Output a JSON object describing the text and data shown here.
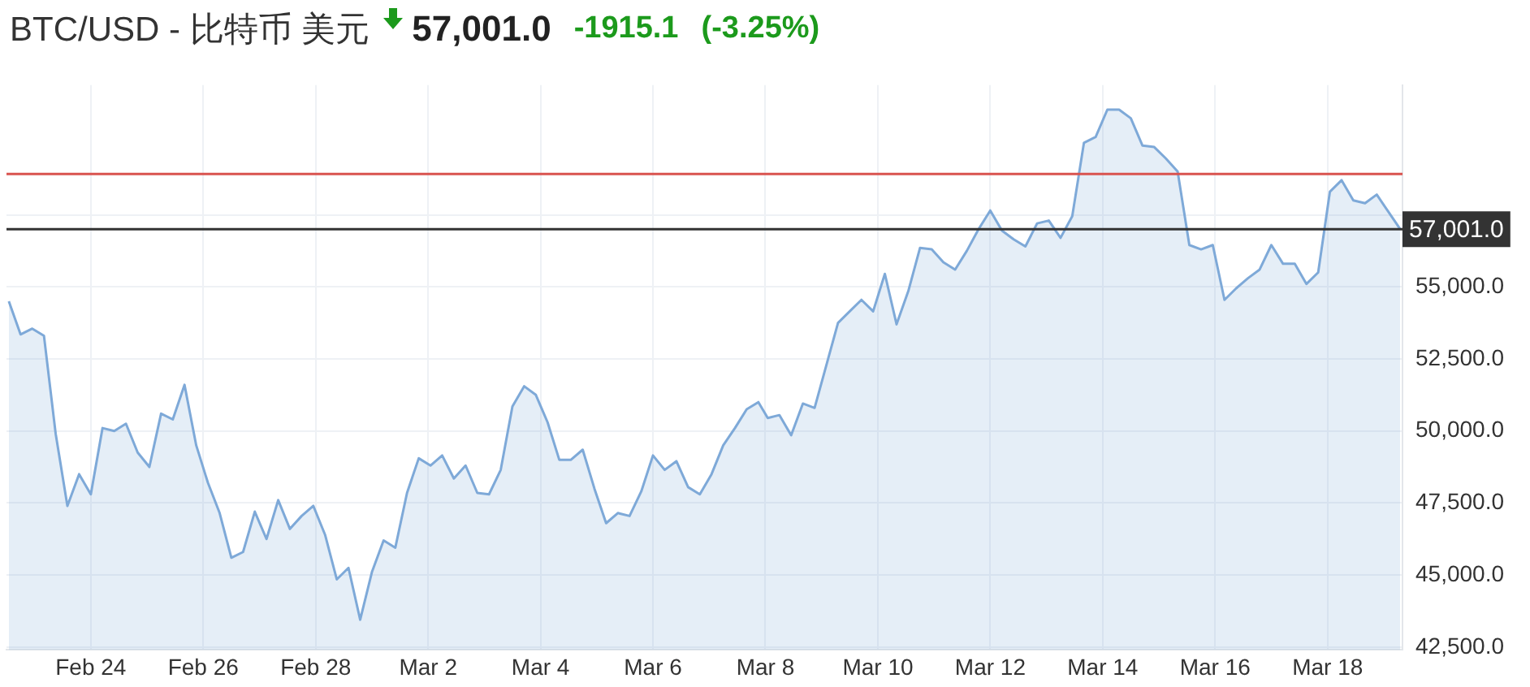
{
  "chart_data": {
    "type": "area",
    "title": "BTC/USD - 比特币 美元",
    "annotations": [
      "57,001.0",
      "-1915.1",
      "(-3.25%)"
    ],
    "x": [
      "--02-22T13:00",
      "--02-22T18:00",
      "--02-22T23:00",
      "--02-23T04:00",
      "--02-23T09:00",
      "--02-23T14:00",
      "--02-23T19:00",
      "--02-24T00:00",
      "--02-24T05:00",
      "--02-24T10:00",
      "--02-24T15:00",
      "--02-24T20:00",
      "--02-25T01:00",
      "--02-25T06:00",
      "--02-25T11:00",
      "--02-25T16:00",
      "--02-25T21:00",
      "--02-26T02:00",
      "--02-26T07:00",
      "--02-26T12:00",
      "--02-26T17:00",
      "--02-26T22:00",
      "--02-27T03:00",
      "--02-27T08:00",
      "--02-27T13:00",
      "--02-27T18:00",
      "--02-27T23:00",
      "--02-28T04:00",
      "--02-28T09:00",
      "--02-28T14:00",
      "--02-28T19:00",
      "--03-01T00:00",
      "--03-01T05:00",
      "--03-01T10:00",
      "--03-01T15:00",
      "--03-01T20:00",
      "--03-02T01:00",
      "--03-02T06:00",
      "--03-02T11:00",
      "--03-02T16:00",
      "--03-02T21:00",
      "--03-03T02:00",
      "--03-03T07:00",
      "--03-03T12:00",
      "--03-03T17:00",
      "--03-03T22:00",
      "--03-04T03:00",
      "--03-04T08:00",
      "--03-04T13:00",
      "--03-04T18:00",
      "--03-04T23:00",
      "--03-05T04:00",
      "--03-05T09:00",
      "--03-05T14:00",
      "--03-05T19:00",
      "--03-06T00:00",
      "--03-06T05:00",
      "--03-06T10:00",
      "--03-06T15:00",
      "--03-06T20:00",
      "--03-07T01:00",
      "--03-07T06:00",
      "--03-07T11:00",
      "--03-07T16:00",
      "--03-07T21:00",
      "--03-08T01:00",
      "--03-08T06:00",
      "--03-08T11:00",
      "--03-08T16:00",
      "--03-08T21:00",
      "--03-09T07:00",
      "--03-09T12:00",
      "--03-09T17:00",
      "--03-09T22:00",
      "--03-10T03:00",
      "--03-10T08:00",
      "--03-10T13:00",
      "--03-10T18:00",
      "--03-10T23:00",
      "--03-11T04:00",
      "--03-11T09:00",
      "--03-11T14:00",
      "--03-11T19:00",
      "--03-12T00:00",
      "--03-12T05:00",
      "--03-12T10:00",
      "--03-12T15:00",
      "--03-12T20:00",
      "--03-13T01:00",
      "--03-13T06:00",
      "--03-13T11:00",
      "--03-13T16:00",
      "--03-13T21:00",
      "--03-14T02:00",
      "--03-14T07:00",
      "--03-14T12:00",
      "--03-14T17:00",
      "--03-14T22:00",
      "--03-15T03:00",
      "--03-15T08:00",
      "--03-15T13:00",
      "--03-15T18:00",
      "--03-15T23:00",
      "--03-16T04:00",
      "--03-16T09:00",
      "--03-16T14:00",
      "--03-16T19:00",
      "--03-17T00:00",
      "--03-17T05:00",
      "--03-17T10:00",
      "--03-17T15:00",
      "--03-17T20:00",
      "--03-18T01:00",
      "--03-18T06:00",
      "--03-18T11:00",
      "--03-18T16:00",
      "--03-18T21:00",
      "--03-19T02:00",
      "--03-19T07:00"
    ],
    "series": [
      {
        "color": "#7ea9d8",
        "values": [
          54500,
          53350,
          53550,
          53300,
          49900,
          47400,
          48500,
          47800,
          50100,
          50000,
          50250,
          49250,
          48750,
          50600,
          50400,
          51600,
          49500,
          48200,
          47150,
          45600,
          45800,
          47200,
          46250,
          47600,
          46600,
          47050,
          47400,
          46400,
          44850,
          45250,
          43450,
          45100,
          46200,
          45950,
          47850,
          49050,
          48800,
          49150,
          48350,
          48800,
          47850,
          47800,
          48650,
          50850,
          51550,
          51250,
          50300,
          49000,
          49000,
          49350,
          48000,
          46800,
          47150,
          47050,
          47900,
          49150,
          48650,
          48950,
          48050,
          47800,
          48500,
          49500,
          50100,
          50750,
          51000,
          50450,
          50550,
          49850,
          50950,
          50800,
          53750,
          54150,
          54550,
          54150,
          55450,
          53700,
          54850,
          56350,
          56300,
          55850,
          55600,
          56250,
          57000,
          57650,
          56950,
          56650,
          56400,
          57200,
          57300,
          56700,
          57450,
          60000,
          60200,
          61150,
          61150,
          60850,
          59900,
          59850,
          59450,
          59000,
          56450,
          56300,
          56450,
          54550,
          54950,
          55300,
          55600,
          56450,
          55800,
          55800,
          55100,
          55500,
          58300,
          58700,
          58000,
          57900,
          58200,
          57600,
          57001
        ]
      }
    ],
    "xlim": [
      "--02-22T12:00",
      "--03-19T08:00"
    ],
    "xticks": [
      {
        "value": "--02-24",
        "label": "Feb 24"
      },
      {
        "value": "--02-26",
        "label": "Feb 26"
      },
      {
        "value": "--02-28",
        "label": "Feb 28"
      },
      {
        "value": "--03-02",
        "label": "Mar 2"
      },
      {
        "value": "--03-04",
        "label": "Mar 4"
      },
      {
        "value": "--03-06",
        "label": "Mar 6"
      },
      {
        "value": "--03-08",
        "label": "Mar 8"
      },
      {
        "value": "--03-10",
        "label": "Mar 10"
      },
      {
        "value": "--03-12",
        "label": "Mar 12"
      },
      {
        "value": "--03-14",
        "label": "Mar 14"
      },
      {
        "value": "--03-16",
        "label": "Mar 16"
      },
      {
        "value": "--03-18",
        "label": "Mar 18"
      }
    ],
    "ylim": [
      42400,
      62000
    ],
    "yticks": [
      {
        "value": 42500,
        "label": "42,500.0"
      },
      {
        "value": 45000,
        "label": "45,000.0"
      },
      {
        "value": 47500,
        "label": "47,500.0"
      },
      {
        "value": 50000,
        "label": "50,000.0"
      },
      {
        "value": 52500,
        "label": "52,500.0"
      },
      {
        "value": 55000,
        "label": "55,000.0"
      },
      {
        "value": 57500,
        "label": null
      }
    ],
    "grid": true,
    "marker": "none",
    "line_style": "solid",
    "ref_lines": [
      {
        "axis": "y",
        "value": 58916.1,
        "color": "#d9534f"
      },
      {
        "axis": "y",
        "value": 57001,
        "label": "57,001.0",
        "color": "#333333"
      }
    ]
  }
}
